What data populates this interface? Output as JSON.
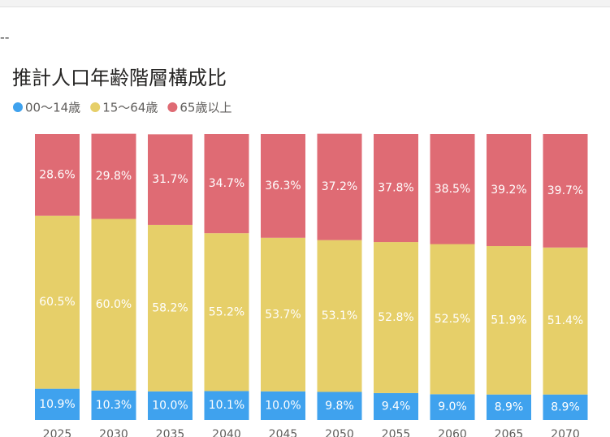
{
  "chart_data": {
    "type": "stacked_bar_100",
    "annotation": "--",
    "title": "推計人口年齢階層構成比",
    "categories": [
      "2025",
      "2030",
      "2035",
      "2040",
      "2045",
      "2050",
      "2055",
      "2060",
      "2065",
      "2070"
    ],
    "series": [
      {
        "name": "00〜14歳",
        "color": "#3fa2ee",
        "values": [
          10.9,
          10.3,
          10.0,
          10.1,
          10.0,
          9.8,
          9.4,
          9.0,
          8.9,
          8.9
        ],
        "value_labels": [
          "10.9%",
          "10.3%",
          "10.0%",
          "10.1%",
          "10.0%",
          "9.8%",
          "9.4%",
          "9.0%",
          "8.9%",
          "8.9%"
        ]
      },
      {
        "name": "15〜64歳",
        "color": "#e6cf69",
        "values": [
          60.5,
          60.0,
          58.2,
          55.2,
          53.7,
          53.1,
          52.8,
          52.5,
          51.9,
          51.4
        ],
        "value_labels": [
          "60.5%",
          "60.0%",
          "58.2%",
          "55.2%",
          "53.7%",
          "53.1%",
          "52.8%",
          "52.5%",
          "51.9%",
          "51.4%"
        ]
      },
      {
        "name": "65歳以上",
        "color": "#df6b74",
        "values": [
          28.6,
          29.8,
          31.7,
          34.7,
          36.3,
          37.2,
          37.8,
          38.5,
          39.2,
          39.7
        ],
        "value_labels": [
          "28.6%",
          "29.8%",
          "31.7%",
          "34.7%",
          "36.3%",
          "37.2%",
          "37.8%",
          "38.5%",
          "39.2%",
          "39.7%"
        ]
      }
    ],
    "ylim": [
      0,
      100
    ]
  }
}
